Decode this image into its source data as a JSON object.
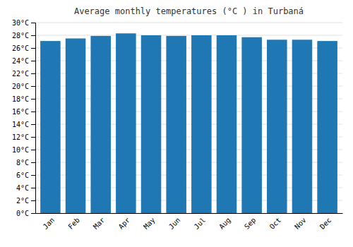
{
  "chart_data": {
    "type": "bar",
    "title": "Average monthly temperatures (°C ) in Turbaná",
    "categories": [
      "Jan",
      "Feb",
      "Mar",
      "Apr",
      "May",
      "Jun",
      "Jul",
      "Aug",
      "Sep",
      "Oct",
      "Nov",
      "Dec"
    ],
    "values": [
      27.1,
      27.5,
      27.9,
      28.3,
      28.0,
      27.9,
      28.0,
      28.0,
      27.7,
      27.3,
      27.3,
      27.1
    ],
    "ylim": [
      0,
      30
    ],
    "yticks": [
      {
        "value": 0,
        "label": "0°C"
      },
      {
        "value": 2,
        "label": "2°C"
      },
      {
        "value": 4,
        "label": "4°C"
      },
      {
        "value": 6,
        "label": "6°C"
      },
      {
        "value": 8,
        "label": "8°C"
      },
      {
        "value": 10,
        "label": "10°C"
      },
      {
        "value": 12,
        "label": "12°C"
      },
      {
        "value": 14,
        "label": "14°C"
      },
      {
        "value": 16,
        "label": "16°C"
      },
      {
        "value": 18,
        "label": "18°C"
      },
      {
        "value": 20,
        "label": "20°C"
      },
      {
        "value": 22,
        "label": "22°C"
      },
      {
        "value": 24,
        "label": "24°C"
      },
      {
        "value": 26,
        "label": "26°C"
      },
      {
        "value": 28,
        "label": "28°C"
      },
      {
        "value": 30,
        "label": "30°C"
      }
    ],
    "grid": true
  }
}
